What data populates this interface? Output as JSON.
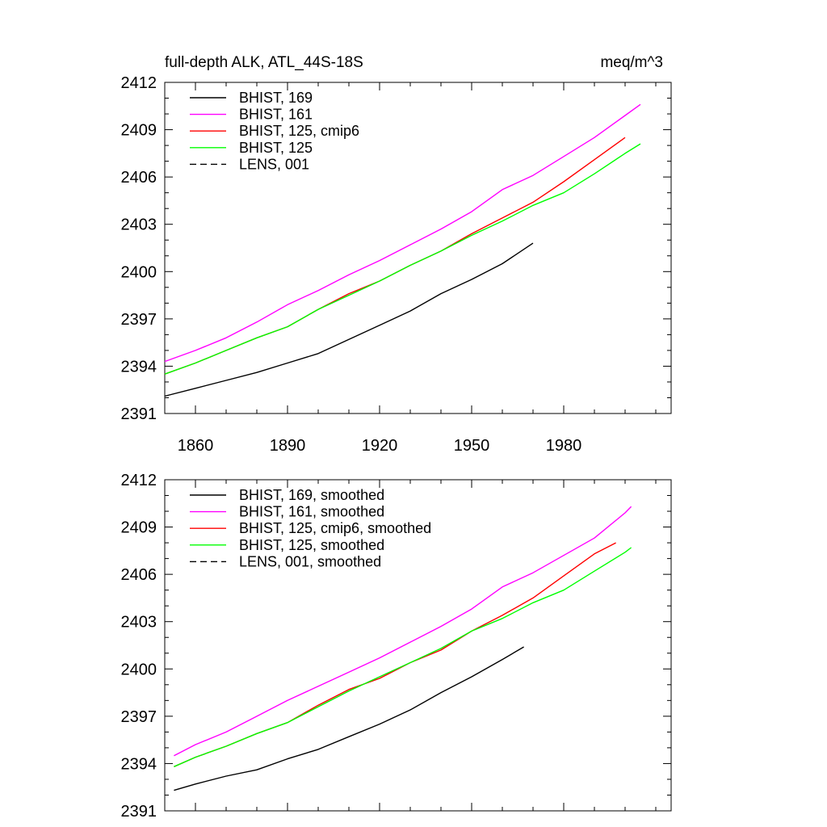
{
  "chart_data": [
    {
      "type": "line",
      "title": "full-depth ALK, ATL_44S-18S",
      "units": "meq/m^3",
      "xlim": [
        1850,
        2015
      ],
      "ylim": [
        2391,
        2412
      ],
      "xticks": [
        1860,
        1890,
        1920,
        1950,
        1980
      ],
      "xtick_labels": [
        "1860",
        "1890",
        "1920",
        "1950",
        "1980"
      ],
      "yticks": [
        2391,
        2394,
        2397,
        2400,
        2403,
        2406,
        2409,
        2412
      ],
      "ytick_labels": [
        "2391",
        "2394",
        "2397",
        "2400",
        "2403",
        "2406",
        "2409",
        "2412"
      ],
      "legend_position": "top-left",
      "series": [
        {
          "name": "BHIST, 169",
          "color": "#000000",
          "dash": "solid",
          "x": [
            1850,
            1860,
            1870,
            1880,
            1890,
            1900,
            1910,
            1920,
            1930,
            1940,
            1950,
            1960,
            1970
          ],
          "y": [
            2392.1,
            2392.6,
            2393.1,
            2393.6,
            2394.2,
            2394.8,
            2395.7,
            2396.6,
            2397.5,
            2398.6,
            2399.5,
            2400.5,
            2401.8
          ]
        },
        {
          "name": "BHIST, 161",
          "color": "#ff00ff",
          "dash": "solid",
          "x": [
            1850,
            1860,
            1870,
            1880,
            1890,
            1900,
            1910,
            1920,
            1930,
            1940,
            1950,
            1960,
            1970,
            1980,
            1990,
            2000,
            2005
          ],
          "y": [
            2394.3,
            2395.0,
            2395.8,
            2396.8,
            2397.9,
            2398.8,
            2399.8,
            2400.7,
            2401.7,
            2402.7,
            2403.8,
            2405.2,
            2406.1,
            2407.3,
            2408.5,
            2409.9,
            2410.6
          ]
        },
        {
          "name": "BHIST, 125, cmip6",
          "color": "#ff0000",
          "dash": "solid",
          "x": [
            1850,
            1860,
            1870,
            1880,
            1890,
            1900,
            1910,
            1920,
            1930,
            1940,
            1950,
            1960,
            1970,
            1980,
            1990,
            2000
          ],
          "y": [
            2393.5,
            2394.2,
            2395.0,
            2395.8,
            2396.5,
            2397.6,
            2398.6,
            2399.4,
            2400.4,
            2401.3,
            2402.4,
            2403.4,
            2404.4,
            2405.7,
            2407.1,
            2408.5
          ]
        },
        {
          "name": "BHIST, 125",
          "color": "#00ff00",
          "dash": "solid",
          "x": [
            1850,
            1860,
            1870,
            1880,
            1890,
            1900,
            1910,
            1920,
            1930,
            1940,
            1950,
            1960,
            1970,
            1980,
            1990,
            2000,
            2005
          ],
          "y": [
            2393.5,
            2394.2,
            2395.0,
            2395.8,
            2396.5,
            2397.6,
            2398.5,
            2399.4,
            2400.4,
            2401.3,
            2402.3,
            2403.2,
            2404.2,
            2405.0,
            2406.2,
            2407.5,
            2408.1
          ]
        },
        {
          "name": "LENS, 001",
          "color": "#000000",
          "dash": "dashed",
          "x": [],
          "y": []
        }
      ]
    },
    {
      "type": "line",
      "xlim": [
        1850,
        2015
      ],
      "ylim": [
        2391,
        2412
      ],
      "xticks": [
        1860,
        1890,
        1920,
        1950,
        1980
      ],
      "yticks": [
        2391,
        2394,
        2397,
        2400,
        2403,
        2406,
        2409,
        2412
      ],
      "ytick_labels": [
        "2391",
        "2394",
        "2397",
        "2400",
        "2403",
        "2406",
        "2409",
        "2412"
      ],
      "legend_position": "top-left",
      "series": [
        {
          "name": "BHIST, 169, smoothed",
          "color": "#000000",
          "dash": "solid",
          "x": [
            1853,
            1860,
            1870,
            1880,
            1890,
            1900,
            1910,
            1920,
            1930,
            1940,
            1950,
            1960,
            1967
          ],
          "y": [
            2392.3,
            2392.7,
            2393.2,
            2393.6,
            2394.3,
            2394.9,
            2395.7,
            2396.5,
            2397.4,
            2398.5,
            2399.5,
            2400.6,
            2401.4
          ]
        },
        {
          "name": "BHIST, 161, smoothed",
          "color": "#ff00ff",
          "dash": "solid",
          "x": [
            1853,
            1860,
            1870,
            1880,
            1890,
            1900,
            1910,
            1920,
            1930,
            1940,
            1950,
            1960,
            1970,
            1980,
            1990,
            2000,
            2002
          ],
          "y": [
            2394.5,
            2395.2,
            2396.0,
            2397.0,
            2398.0,
            2398.9,
            2399.8,
            2400.7,
            2401.7,
            2402.7,
            2403.8,
            2405.2,
            2406.1,
            2407.2,
            2408.3,
            2409.9,
            2410.3
          ]
        },
        {
          "name": "BHIST, 125, cmip6, smoothed",
          "color": "#ff0000",
          "dash": "solid",
          "x": [
            1853,
            1860,
            1870,
            1880,
            1890,
            1900,
            1910,
            1920,
            1930,
            1940,
            1950,
            1960,
            1970,
            1980,
            1990,
            1997
          ],
          "y": [
            2393.8,
            2394.4,
            2395.1,
            2395.9,
            2396.6,
            2397.7,
            2398.7,
            2399.4,
            2400.4,
            2401.2,
            2402.4,
            2403.4,
            2404.5,
            2405.9,
            2407.3,
            2408.0
          ]
        },
        {
          "name": "BHIST, 125, smoothed",
          "color": "#00ff00",
          "dash": "solid",
          "x": [
            1853,
            1860,
            1870,
            1880,
            1890,
            1900,
            1910,
            1920,
            1930,
            1940,
            1950,
            1960,
            1970,
            1980,
            1990,
            2000,
            2002
          ],
          "y": [
            2393.8,
            2394.4,
            2395.1,
            2395.9,
            2396.6,
            2397.6,
            2398.6,
            2399.5,
            2400.4,
            2401.3,
            2402.4,
            2403.2,
            2404.2,
            2405.0,
            2406.2,
            2407.4,
            2407.7
          ]
        },
        {
          "name": "LENS, 001, smoothed",
          "color": "#000000",
          "dash": "dashed",
          "x": [],
          "y": []
        }
      ]
    }
  ]
}
